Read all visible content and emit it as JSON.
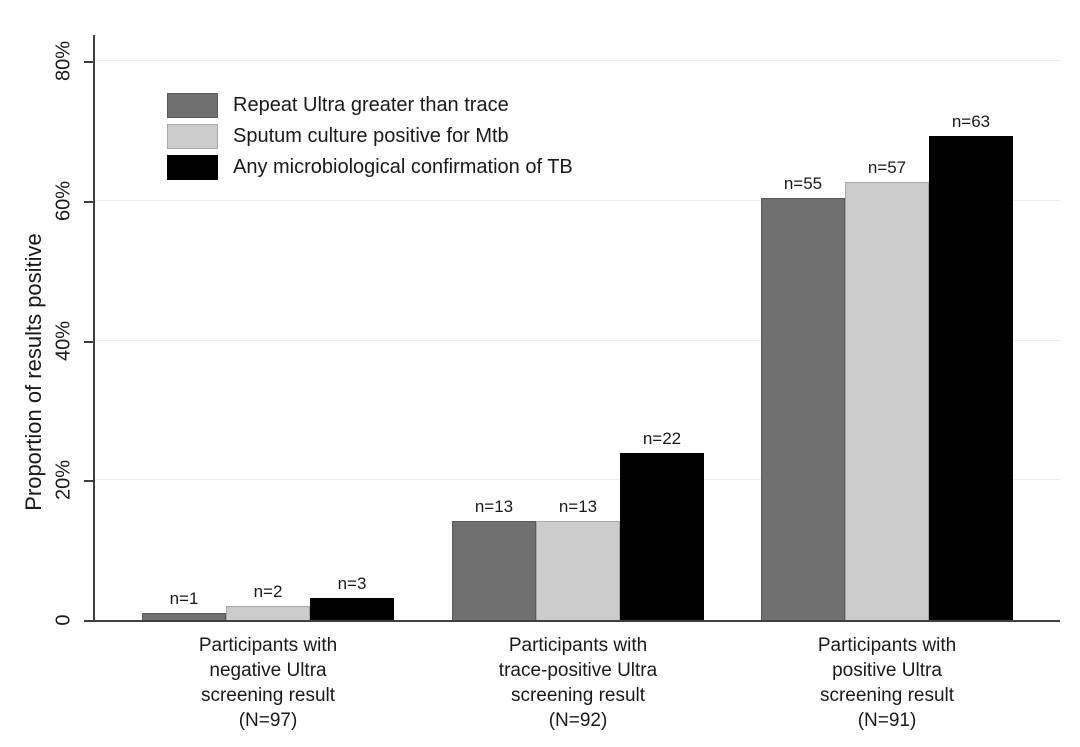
{
  "chart_data": {
    "type": "bar",
    "title": "",
    "xlabel": "",
    "ylabel": "Proportion of results positive",
    "y_ticks": [
      "0",
      "20%",
      "40%",
      "60%",
      "80%"
    ],
    "y_tick_values": [
      0,
      20,
      40,
      60,
      80
    ],
    "ylim": [
      0,
      83.7
    ],
    "grid": true,
    "legend_position": "inside top-left",
    "groups": [
      {
        "label_lines": [
          "Participants with",
          "negative Ultra",
          "screening result",
          "(N=97)"
        ],
        "N": 97
      },
      {
        "label_lines": [
          "Participants with",
          "trace-positive Ultra",
          "screening result",
          "(N=92)"
        ],
        "N": 92
      },
      {
        "label_lines": [
          "Participants with",
          "positive Ultra",
          "screening result",
          "(N=91)"
        ],
        "N": 91
      }
    ],
    "series": [
      {
        "name": "Repeat Ultra greater than trace",
        "fill": "#707070",
        "edge": "#595959",
        "counts": [
          1,
          13,
          55
        ],
        "values_pct": [
          1.03,
          14.13,
          60.44
        ],
        "bar_labels": [
          "n=1",
          "n=13",
          "n=55"
        ]
      },
      {
        "name": "Sputum culture positive for Mtb",
        "fill": "#cccccc",
        "edge": "#a8a8a8",
        "counts": [
          2,
          13,
          57
        ],
        "values_pct": [
          2.06,
          14.13,
          62.64
        ],
        "bar_labels": [
          "n=2",
          "n=13",
          "n=57"
        ]
      },
      {
        "name": "Any microbiological confirmation of TB",
        "fill": "#000000",
        "edge": "#000000",
        "counts": [
          3,
          22,
          63
        ],
        "values_pct": [
          3.09,
          23.91,
          69.23
        ],
        "bar_labels": [
          "n=3",
          "n=22",
          "n=63"
        ]
      }
    ],
    "colors": {
      "background": "#ffffff",
      "gridline": "#ececec",
      "axis": "#404040",
      "text": "#1a1a1a"
    }
  }
}
